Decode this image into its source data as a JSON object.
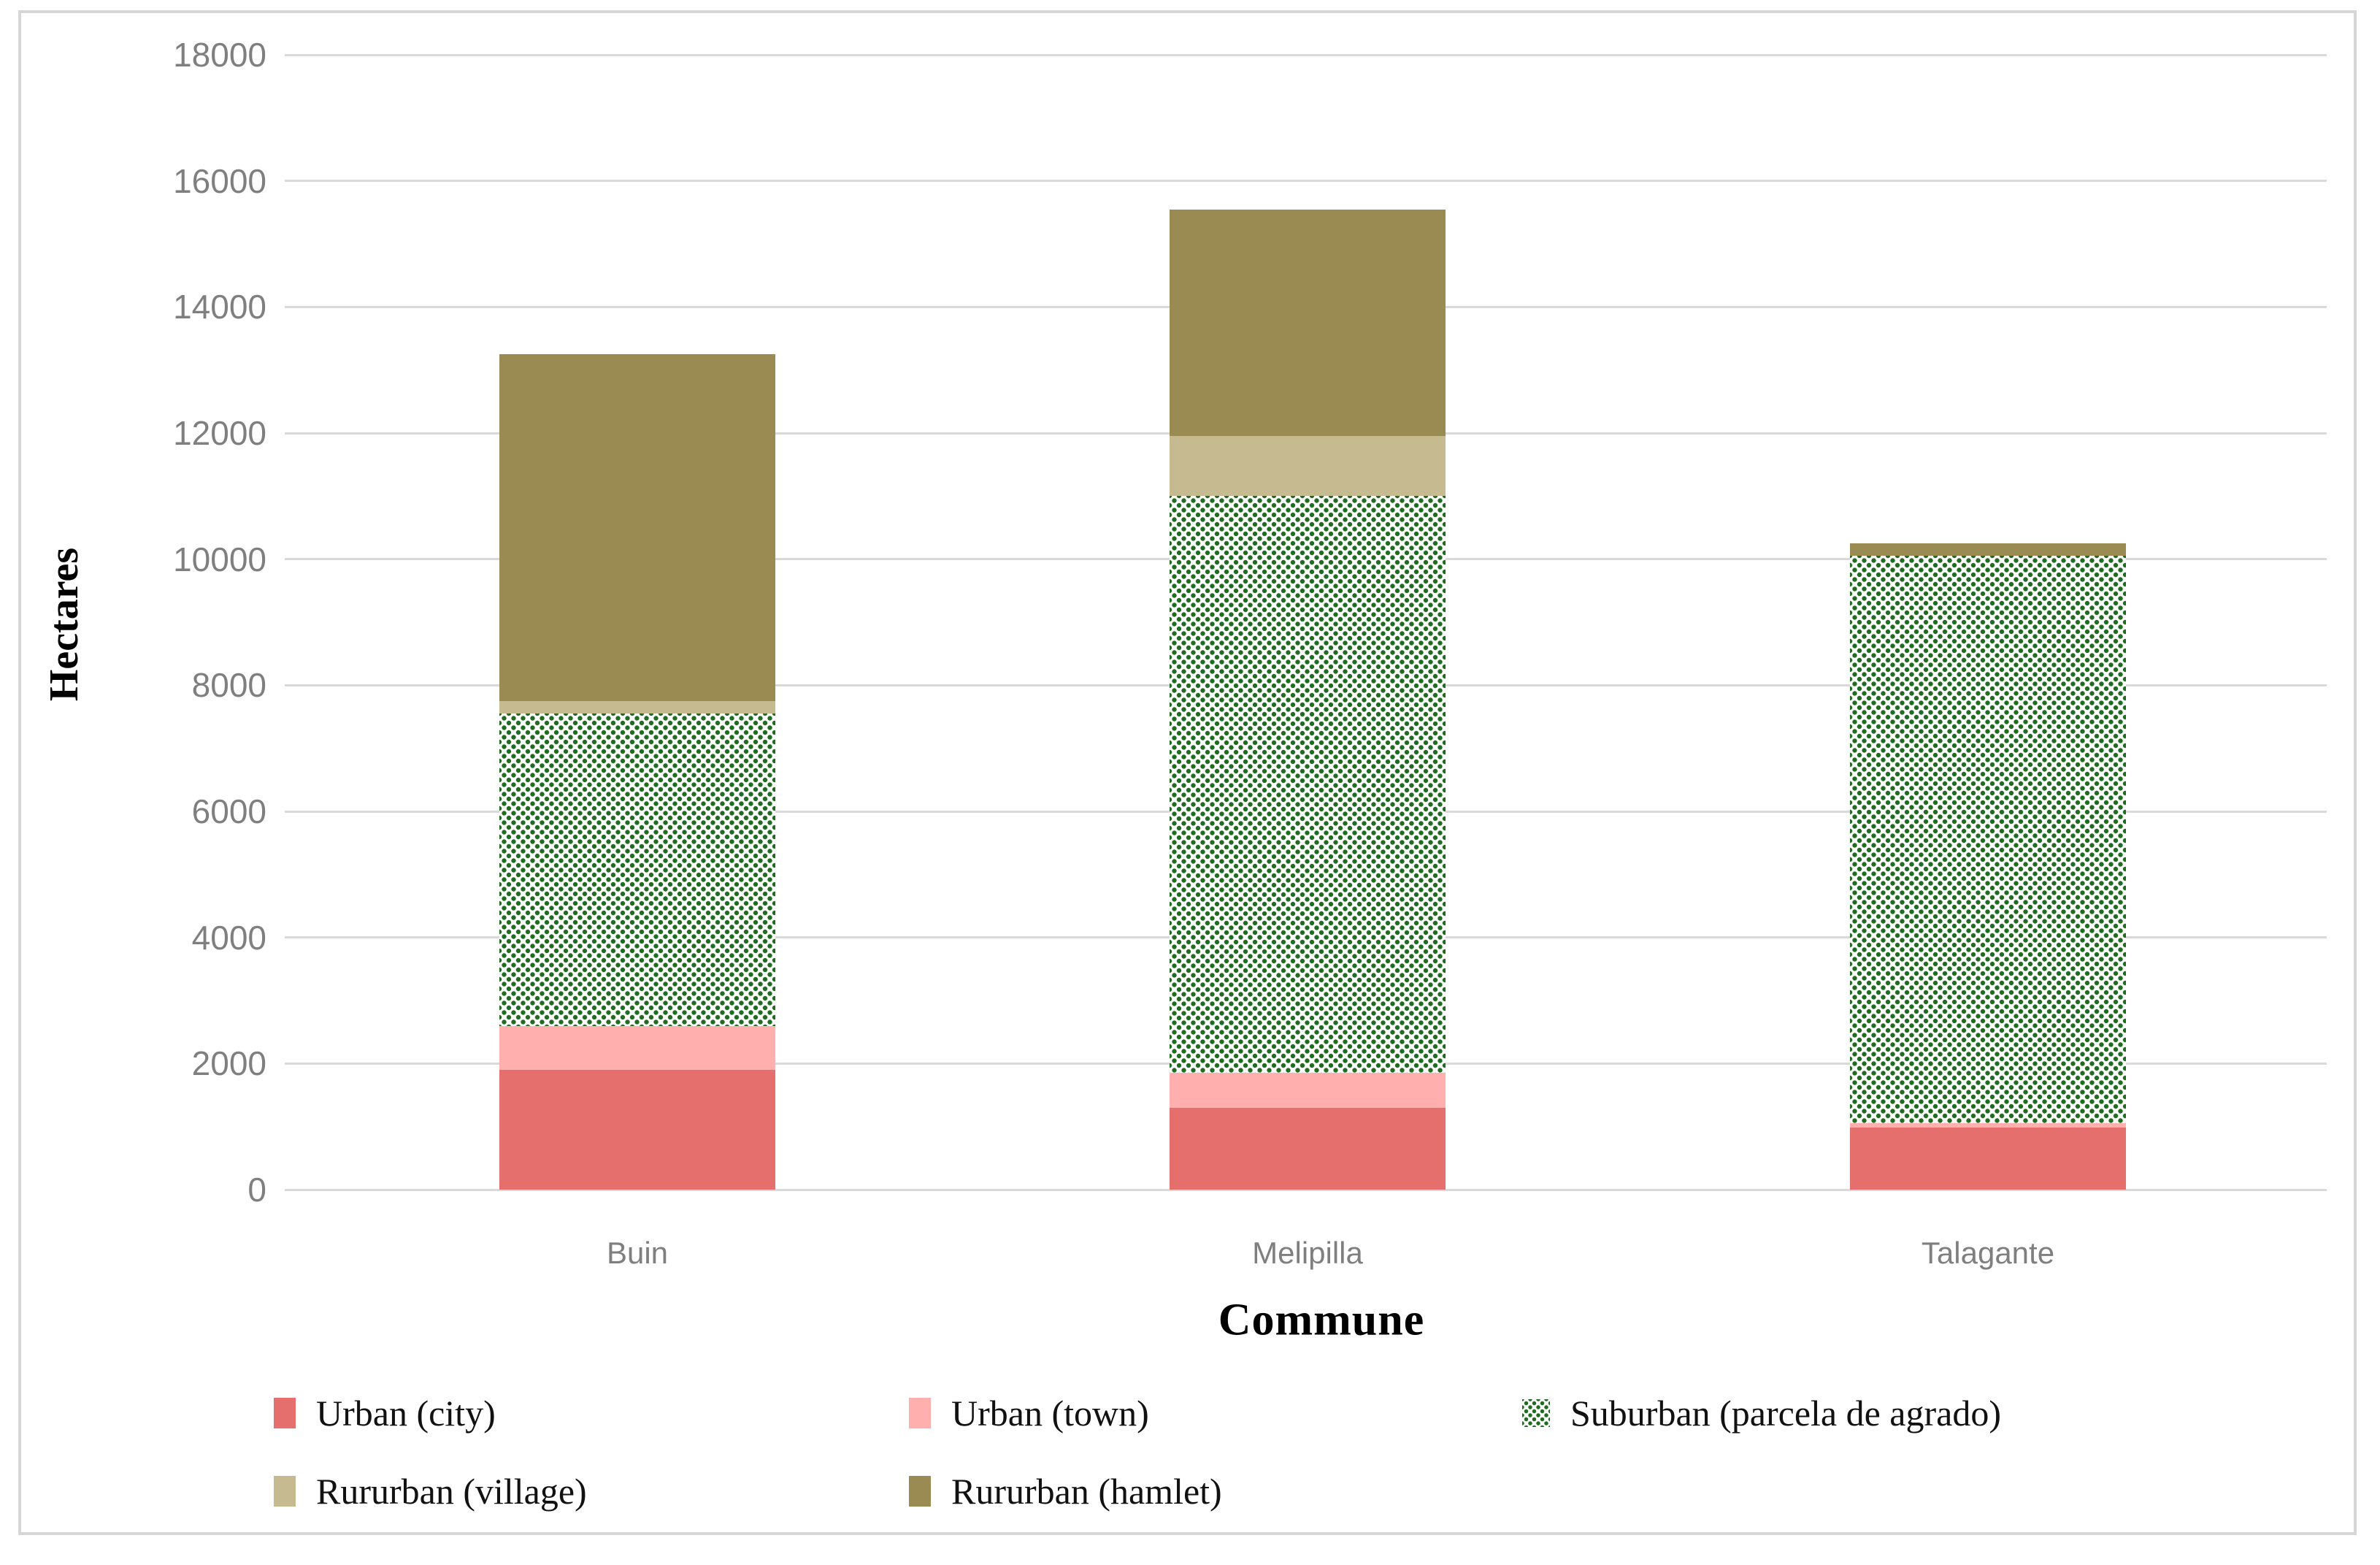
{
  "figure": {
    "title": "",
    "frame_border_color": "#d6d6d6",
    "background": "#ffffff"
  },
  "colors": {
    "gridline": "#d9d9d9",
    "tick_text": "#7f7f7f",
    "axis_title_text": "#000000",
    "legend_text": "#111111",
    "suburban_dot_green": "#1f6b1f"
  },
  "chart_data": {
    "type": "bar",
    "stacked": true,
    "title": "",
    "xlabel": "Commune",
    "ylabel": "Hectares",
    "ylim": [
      0,
      18000
    ],
    "ytick_step": 2000,
    "yticks": [
      0,
      2000,
      4000,
      6000,
      8000,
      10000,
      12000,
      14000,
      16000,
      18000
    ],
    "ytick_labels": [
      "0",
      "2000",
      "4000",
      "6000",
      "8000",
      "10000",
      "12000",
      "14000",
      "16000",
      "18000"
    ],
    "grid": "horizontal",
    "legend_position": "bottom",
    "categories": [
      "Buin",
      "Melipilla",
      "Talagante"
    ],
    "series": [
      {
        "name": "Urban (city)",
        "color": "#e56f6c",
        "pattern": "solid",
        "values": [
          1900,
          1300,
          980
        ]
      },
      {
        "name": "Urban (town)",
        "color": "#ffafae",
        "pattern": "solid",
        "values": [
          700,
          550,
          70
        ]
      },
      {
        "name": "Suburban (parcela de agrado)",
        "color": "#1f6b1f",
        "pattern": "green-dots",
        "values": [
          4950,
          9150,
          9000
        ]
      },
      {
        "name": "Rururban (village)",
        "color": "#c6ba90",
        "pattern": "solid",
        "values": [
          200,
          950,
          0
        ]
      },
      {
        "name": "Rururban (hamlet)",
        "color": "#998b52",
        "pattern": "solid",
        "values": [
          5500,
          3600,
          200
        ]
      }
    ],
    "totals": [
      13250,
      15550,
      10250
    ],
    "legend_rows": [
      [
        "Urban (city)",
        "Urban (town)",
        "Suburban (parcela de agrado)"
      ],
      [
        "Rururban (village)",
        "Rururban (hamlet)"
      ]
    ]
  }
}
